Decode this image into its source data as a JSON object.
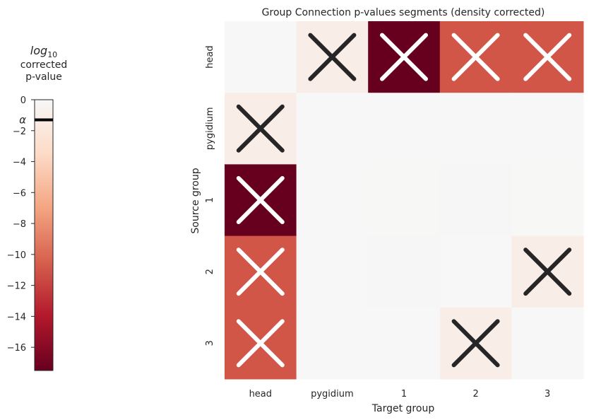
{
  "chart_data": {
    "type": "heatmap",
    "title": "Group Connection p-values segments (density corrected)",
    "xlabel": "Target group",
    "ylabel": "Source group",
    "x_categories": [
      "head",
      "pygidium",
      "1",
      "2",
      "3"
    ],
    "y_categories": [
      "head",
      "pygidium",
      "1",
      "2",
      "3"
    ],
    "values": [
      [
        0.0,
        -1.2,
        -17.5,
        -11.0,
        -11.0
      ],
      [
        -1.2,
        0.0,
        0.0,
        0.0,
        0.0
      ],
      [
        -17.5,
        0.0,
        -0.05,
        -0.1,
        -0.05
      ],
      [
        -11.0,
        0.0,
        -0.1,
        0.0,
        -1.2
      ],
      [
        -11.0,
        0.0,
        0.0,
        -1.2,
        0.0
      ]
    ],
    "significant": [
      [
        false,
        true,
        true,
        true,
        true
      ],
      [
        true,
        false,
        false,
        false,
        false
      ],
      [
        true,
        false,
        false,
        false,
        false
      ],
      [
        true,
        false,
        false,
        false,
        true
      ],
      [
        true,
        false,
        false,
        true,
        false
      ]
    ],
    "colorbar": {
      "label_log": "log",
      "label_sub": "10",
      "label_line2": "corrected",
      "label_line3": "p-value",
      "range": [
        -17.5,
        0
      ],
      "ticks": [
        0,
        -2,
        -4,
        -6,
        -8,
        -10,
        -12,
        -14,
        -16
      ],
      "tick_labels": [
        "0",
        "−2",
        "−4",
        "−6",
        "−8",
        "−10",
        "−12",
        "−14",
        "−16"
      ],
      "alpha_label": "α",
      "alpha_value": -1.3
    },
    "colormap": [
      "#67001f",
      "#b2182b",
      "#d6604d",
      "#f4a582",
      "#fddbc7",
      "#f7f7f7"
    ]
  }
}
